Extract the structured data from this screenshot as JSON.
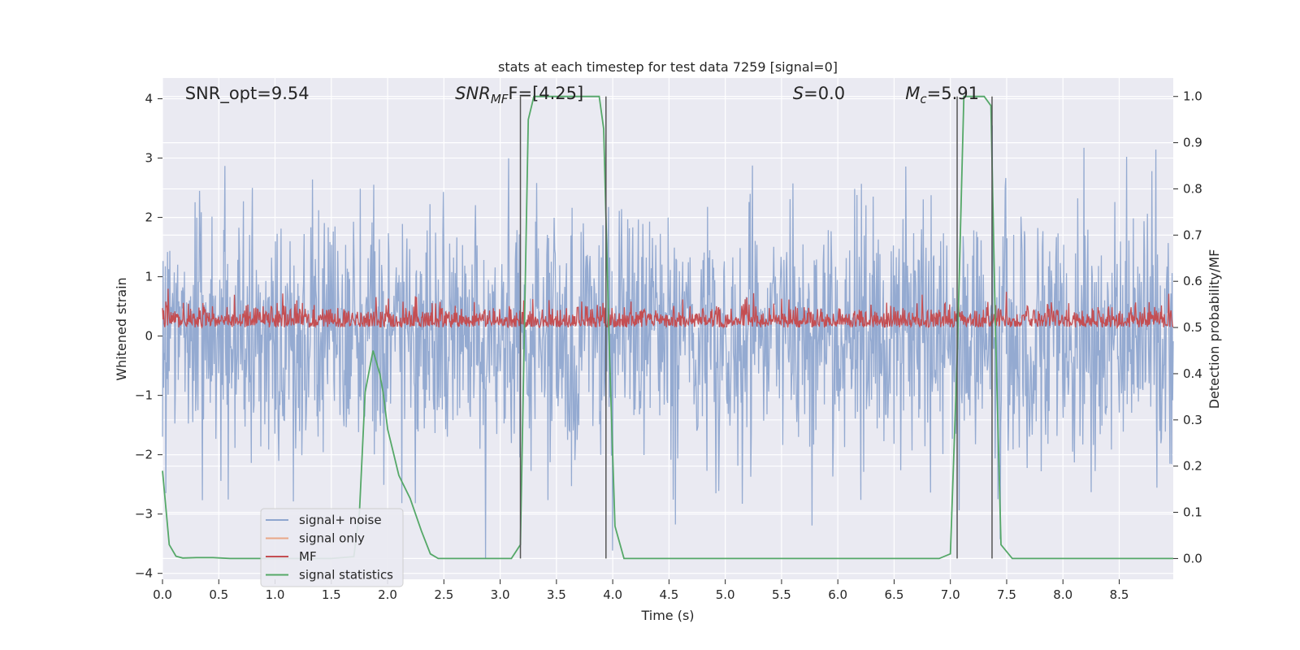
{
  "chart_data": {
    "type": "line",
    "title": "stats at each timestep for test data 7259 [signal=0]",
    "xlabel": "Time (s)",
    "ylabel_left": "Whitened strain",
    "ylabel_right": "Detection probability/MF",
    "xlim": [
      0.0,
      8.98
    ],
    "ylim_left": [
      -4.1,
      4.35
    ],
    "ylim_right": [
      -0.045,
      1.04
    ],
    "x_ticks": [
      "0.0",
      "0.5",
      "1.0",
      "1.5",
      "2.0",
      "2.5",
      "3.0",
      "3.5",
      "4.0",
      "4.5",
      "5.0",
      "5.5",
      "6.0",
      "6.5",
      "7.0",
      "7.5",
      "8.0",
      "8.5"
    ],
    "y_ticks_left": [
      "4",
      "3",
      "2",
      "1",
      "0",
      "−1",
      "−2",
      "−3",
      "−4"
    ],
    "y_ticks_right": [
      "1.0",
      "0.9",
      "0.8",
      "0.7",
      "0.6",
      "0.5",
      "0.4",
      "0.3",
      "0.2",
      "0.1",
      "0.0"
    ],
    "grid": true,
    "legend_position": "lower-left",
    "annotations": [
      {
        "text": "SNR_opt=9.54",
        "x": 0.2
      },
      {
        "text": "SNR",
        "sub": "MF",
        "suffix": "F=[4.25]",
        "x": 2.6
      },
      {
        "text": "S",
        "suffix": "=0.0",
        "x": 5.6
      },
      {
        "text": "M",
        "sub": "c",
        "suffix": "=5.91",
        "x": 6.6
      }
    ],
    "vertical_lines": [
      3.18,
      3.94,
      7.06,
      7.37
    ],
    "series": [
      {
        "name": "signal+ noise",
        "color": "#8fa6cf",
        "axis": "left",
        "noise_std": 1.0,
        "n_points": 1800
      },
      {
        "name": "signal only",
        "color": "#e9a787",
        "axis": "left",
        "values": []
      },
      {
        "name": "MF",
        "color": "#c44e52",
        "axis": "right",
        "band": [
          0.5,
          0.53
        ],
        "n_points": 1800
      },
      {
        "name": "signal statistics",
        "color": "#55a868",
        "axis": "right",
        "x": [
          0.0,
          0.06,
          0.12,
          0.18,
          0.3,
          0.45,
          0.6,
          0.9,
          1.2,
          1.5,
          1.7,
          1.75,
          1.8,
          1.87,
          1.93,
          1.96,
          2.0,
          2.05,
          2.1,
          2.2,
          2.3,
          2.38,
          2.45,
          2.6,
          2.9,
          3.1,
          3.18,
          3.25,
          3.3,
          3.5,
          3.7,
          3.88,
          3.92,
          3.97,
          4.02,
          4.1,
          4.3,
          5.0,
          6.0,
          6.9,
          7.0,
          7.06,
          7.12,
          7.2,
          7.3,
          7.36,
          7.4,
          7.45,
          7.55,
          7.8,
          8.5,
          8.98
        ],
        "values": [
          0.19,
          0.03,
          0.005,
          0.001,
          0.002,
          0.002,
          0.0,
          0.0,
          0.0,
          0.0,
          0.004,
          0.1,
          0.36,
          0.45,
          0.4,
          0.36,
          0.28,
          0.23,
          0.18,
          0.13,
          0.06,
          0.01,
          0.0,
          0.0,
          0.0,
          0.0,
          0.03,
          0.95,
          1.0,
          1.0,
          1.0,
          1.0,
          0.93,
          0.45,
          0.07,
          0.0,
          0.0,
          0.0,
          0.0,
          0.0,
          0.01,
          0.43,
          1.0,
          1.0,
          1.0,
          0.98,
          0.5,
          0.03,
          0.0,
          0.0,
          0.0,
          0.0
        ]
      }
    ]
  }
}
